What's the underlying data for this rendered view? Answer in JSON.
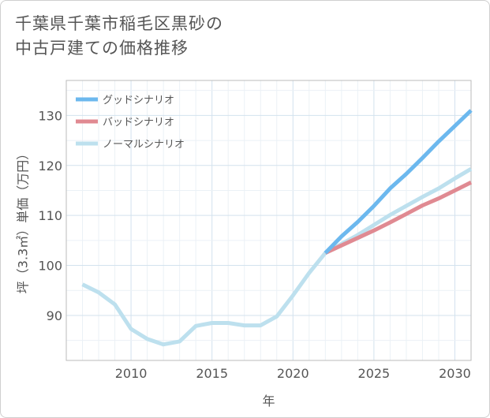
{
  "title_lines": [
    "千葉県千葉市稲毛区黒砂の",
    "中古戸建ての価格推移"
  ],
  "chart_data": {
    "type": "line",
    "title": "千葉県千葉市稲毛区黒砂の中古戸建ての価格推移",
    "xlabel": "年",
    "ylabel": "坪（3.3㎡）単価（万円）",
    "xlim": [
      2006,
      2031
    ],
    "ylim": [
      81,
      137
    ],
    "xticks": [
      2010,
      2015,
      2020,
      2025,
      2030
    ],
    "yticks": [
      90,
      100,
      110,
      120,
      130
    ],
    "legend_position": "top-left",
    "series": [
      {
        "name": "グッドシナリオ",
        "color": "#6cb8ee",
        "x": [
          2022,
          2023,
          2024,
          2025,
          2026,
          2027,
          2028,
          2029,
          2030,
          2031
        ],
        "y": [
          102.5,
          105.8,
          108.7,
          111.9,
          115.4,
          118.3,
          121.5,
          124.8,
          127.9,
          131.0
        ]
      },
      {
        "name": "バッドシナリオ",
        "color": "#e08a92",
        "x": [
          2022,
          2023,
          2024,
          2025,
          2026,
          2027,
          2028,
          2029,
          2030,
          2031
        ],
        "y": [
          102.5,
          104.0,
          105.5,
          107.0,
          108.6,
          110.3,
          112.0,
          113.4,
          115.0,
          116.6
        ]
      },
      {
        "name": "ノーマルシナリオ",
        "color": "#bde0ee",
        "x": [
          2007,
          2008,
          2009,
          2010,
          2011,
          2012,
          2013,
          2014,
          2015,
          2016,
          2017,
          2018,
          2019,
          2020,
          2021,
          2022,
          2023,
          2024,
          2025,
          2026,
          2027,
          2028,
          2029,
          2030,
          2031
        ],
        "y": [
          96.2,
          94.6,
          92.2,
          87.3,
          85.3,
          84.2,
          84.8,
          87.9,
          88.5,
          88.5,
          88.0,
          88.0,
          89.8,
          94.0,
          98.5,
          102.5,
          104.3,
          106.1,
          108.1,
          110.1,
          111.9,
          113.7,
          115.4,
          117.4,
          119.3
        ]
      }
    ]
  }
}
